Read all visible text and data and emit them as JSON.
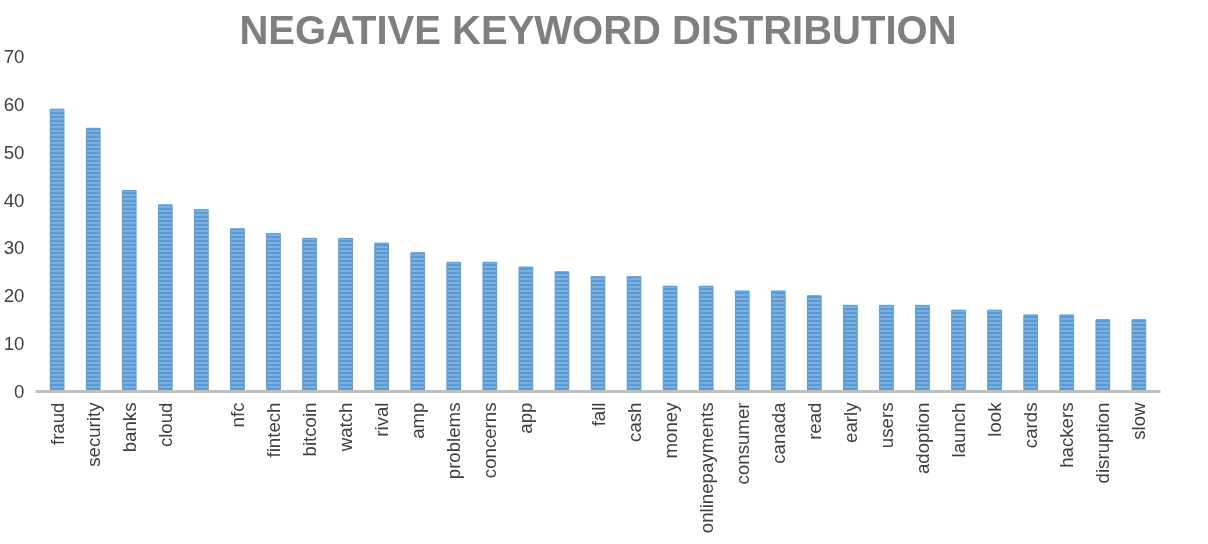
{
  "chart_data": {
    "type": "bar",
    "title": "NEGATIVE KEYWORD DISTRIBUTION",
    "categories": [
      "fraud",
      "security",
      "banks",
      "cloud",
      null,
      "nfc",
      "fintech",
      "bitcoin",
      "watch",
      "rival",
      "amp",
      "problems",
      "concerns",
      "app",
      null,
      "fall",
      "cash",
      "money",
      "onlinepayments",
      "consumer",
      "canada",
      "read",
      "early",
      "users",
      "adoption",
      "launch",
      "look",
      "cards",
      "hackers",
      "disruption",
      "slow"
    ],
    "values": [
      59,
      55,
      42,
      39,
      38,
      34,
      33,
      32,
      32,
      31,
      29,
      27,
      27,
      26,
      25,
      24,
      24,
      22,
      22,
      21,
      21,
      20,
      18,
      18,
      18,
      17,
      17,
      16,
      16,
      15,
      15
    ],
    "color": "#5b9bd5",
    "ylim": [
      0,
      70
    ],
    "yticks": [
      0,
      10,
      20,
      30,
      40,
      50,
      60,
      70
    ],
    "grid": false
  }
}
